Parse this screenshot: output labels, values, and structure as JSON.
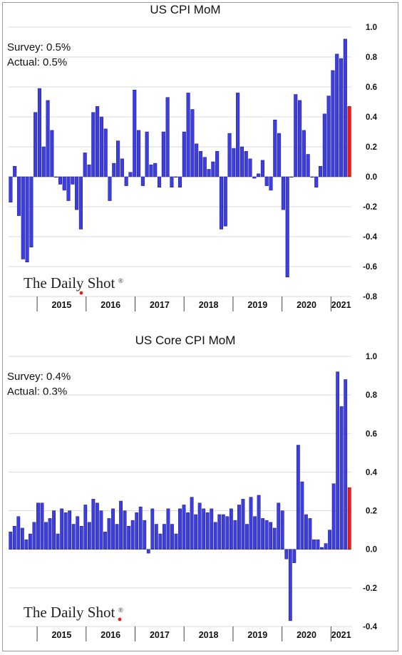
{
  "colors": {
    "bar": "#3d3de6",
    "bar_outline": "#1a1a66",
    "latest": "#e81c1c",
    "grid": "#d9d9d9",
    "accent": "#e81c1c"
  },
  "logo": {
    "text": "The Daily Shot",
    "mark": "®"
  },
  "chart_data": [
    {
      "type": "bar",
      "title": "US CPI MoM",
      "annotations": [
        "Survey: 0.5%",
        "Actual:  0.5%"
      ],
      "ylim": [
        -0.8,
        1.0
      ],
      "yticks": [
        -0.8,
        -0.6,
        -0.4,
        -0.2,
        0.0,
        0.2,
        0.4,
        0.6,
        0.8,
        1.0
      ],
      "ytick_labels": [
        "-0.8",
        "-0.6",
        "-0.4",
        "-0.2",
        "0.0",
        "0.2",
        "0.4",
        "0.6",
        "0.8",
        "1.0"
      ],
      "grid": true,
      "x_start": "2014-06",
      "x_end": "2021-05",
      "year_labels": [
        "2015",
        "2016",
        "2017",
        "2018",
        "2019",
        "2020",
        "2021"
      ],
      "highlight_last": true,
      "values": [
        -0.17,
        0.07,
        -0.26,
        -0.55,
        -0.57,
        -0.47,
        0.43,
        0.59,
        0.2,
        0.51,
        0.31,
        0.0,
        -0.05,
        -0.09,
        -0.16,
        -0.05,
        -0.22,
        -0.35,
        0.16,
        0.08,
        0.43,
        0.47,
        0.4,
        0.32,
        -0.16,
        0.09,
        0.24,
        0.12,
        -0.06,
        0.03,
        0.58,
        0.31,
        -0.06,
        0.3,
        0.08,
        0.09,
        -0.07,
        0.3,
        0.53,
        -0.07,
        0.0,
        -0.07,
        0.3,
        0.56,
        0.45,
        0.22,
        0.17,
        0.13,
        0.05,
        0.1,
        0.17,
        -0.35,
        -0.33,
        0.29,
        0.19,
        0.56,
        0.2,
        0.17,
        0.12,
        -0.01,
        0.02,
        0.11,
        -0.06,
        -0.09,
        0.38,
        0.29,
        -0.22,
        -0.67,
        0.0,
        0.55,
        0.51,
        0.31,
        0.15,
        0.0,
        -0.07,
        0.07,
        0.42,
        0.54,
        0.71,
        0.82,
        0.79,
        0.92,
        0.47
      ]
    },
    {
      "type": "bar",
      "title": "US Core CPI MoM",
      "annotations": [
        "Survey: 0.4%",
        "Actual:  0.3%"
      ],
      "ylim": [
        -0.4,
        1.0
      ],
      "yticks": [
        -0.4,
        -0.2,
        0.0,
        0.2,
        0.4,
        0.6,
        0.8,
        1.0
      ],
      "ytick_labels": [
        "-0.4",
        "-0.2",
        "0.0",
        "0.2",
        "0.4",
        "0.6",
        "0.8",
        "1.0"
      ],
      "grid": true,
      "x_start": "2014-06",
      "x_end": "2021-05",
      "year_labels": [
        "2015",
        "2016",
        "2017",
        "2018",
        "2019",
        "2020",
        "2021"
      ],
      "highlight_last": true,
      "values": [
        0.09,
        0.12,
        0.17,
        0.11,
        0.05,
        0.08,
        0.14,
        0.24,
        0.24,
        0.14,
        0.16,
        0.2,
        0.08,
        0.21,
        0.19,
        0.2,
        0.13,
        0.17,
        0.12,
        0.23,
        0.14,
        0.26,
        0.24,
        0.2,
        0.09,
        0.16,
        0.21,
        0.13,
        0.25,
        0.2,
        0.12,
        0.15,
        0.19,
        0.22,
        0.15,
        -0.02,
        0.21,
        0.13,
        0.08,
        0.13,
        0.21,
        0.13,
        0.08,
        0.21,
        0.23,
        0.19,
        0.27,
        0.18,
        0.24,
        0.21,
        0.19,
        0.21,
        0.14,
        0.18,
        0.18,
        0.17,
        0.21,
        0.15,
        0.23,
        0.26,
        0.13,
        0.27,
        0.17,
        0.28,
        0.16,
        0.15,
        0.14,
        0.11,
        0.24,
        0.2,
        -0.05,
        -0.37,
        -0.07,
        0.54,
        0.35,
        0.18,
        0.16,
        0.05,
        0.05,
        0.01,
        0.03,
        0.1,
        0.34,
        0.92,
        0.74,
        0.88,
        0.32
      ]
    }
  ]
}
